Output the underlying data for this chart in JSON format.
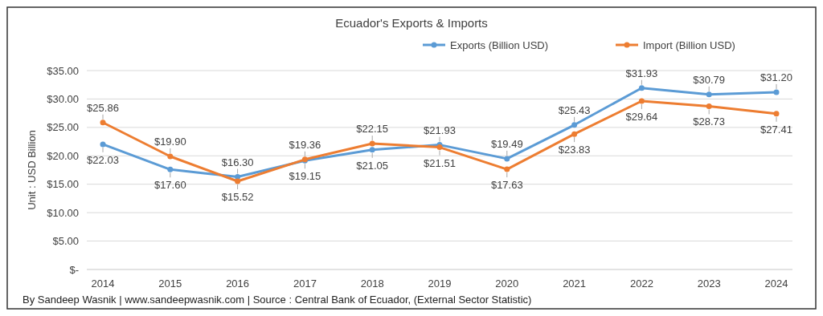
{
  "chart_data": {
    "type": "line",
    "title": "Ecuador's Exports & Imports",
    "ylabel": "Unit : USD Billion",
    "categories": [
      "2014",
      "2015",
      "2016",
      "2017",
      "2018",
      "2019",
      "2020",
      "2021",
      "2022",
      "2023",
      "2024"
    ],
    "series": [
      {
        "name": "Exports (Billion USD)",
        "color": "#5b9bd5",
        "values": [
          22.03,
          17.6,
          16.3,
          19.15,
          21.05,
          21.93,
          19.49,
          25.43,
          31.93,
          30.79,
          31.2
        ],
        "value_labels": [
          "$22.03",
          "$17.60",
          "$16.30",
          "$19.15",
          "$21.05",
          "$21.93",
          "$19.49",
          "$25.43",
          "$31.93",
          "$30.79",
          "$31.20"
        ]
      },
      {
        "name": "Import (Billion USD)",
        "color": "#ed7d31",
        "values": [
          25.86,
          19.9,
          15.52,
          19.36,
          22.15,
          21.51,
          17.63,
          23.83,
          29.64,
          28.73,
          27.41
        ],
        "value_labels": [
          "$25.86",
          "$19.90",
          "$15.52",
          "$19.36",
          "$22.15",
          "$21.51",
          "$17.63",
          "$23.83",
          "$29.64",
          "$28.73",
          "$27.41"
        ]
      }
    ],
    "ylim": [
      0,
      35
    ],
    "yticks": [
      {
        "value": 0,
        "label": "$-"
      },
      {
        "value": 5,
        "label": "$5.00"
      },
      {
        "value": 10,
        "label": "$10.00"
      },
      {
        "value": 15,
        "label": "$15.00"
      },
      {
        "value": 20,
        "label": "$20.00"
      },
      {
        "value": 25,
        "label": "$25.00"
      },
      {
        "value": 30,
        "label": "$30.00"
      },
      {
        "value": 35,
        "label": "$35.00"
      }
    ],
    "grid": "y",
    "legend": "top right",
    "marker": "circle",
    "line_style": "solid",
    "annotations": [
      "By Sandeep Wasnik | www.sandeepwasnik.com | Source : Central Bank of Ecuador, (External Sector Statistic)"
    ]
  }
}
